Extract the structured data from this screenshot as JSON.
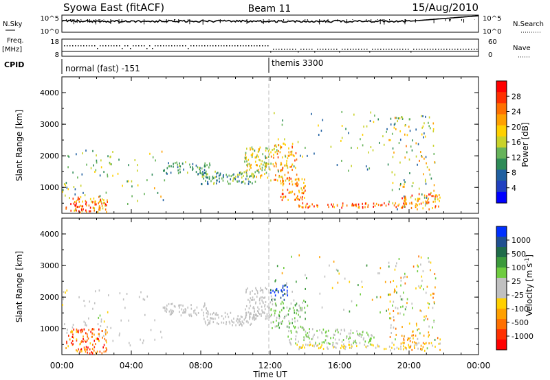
{
  "header": {
    "station": "Syowa East (fitACF)",
    "beam": "Beam 11",
    "date": "15/Aug/2010"
  },
  "left_labels": {
    "nsky": "N.Sky",
    "freq_1": "Freq.",
    "freq_2": "[MHz]",
    "cpid": "CPID",
    "nsky_ticks": [
      "10^5",
      "10^0"
    ],
    "freq_ticks": [
      "18",
      "8"
    ]
  },
  "right_labels": {
    "nsearch": "N.Search",
    "nave": "Nave",
    "nsearch_ticks": [
      "10^5",
      "10^0"
    ],
    "nave_ticks": [
      "60",
      "0"
    ]
  },
  "cpid_modes": [
    {
      "label": "normal (fast) -151",
      "start": "00:00"
    },
    {
      "label": "themis 3300",
      "start": "12:00"
    }
  ],
  "x_axis": {
    "label": "Time UT",
    "ticks": [
      "00:00",
      "04:00",
      "08:00",
      "12:00",
      "16:00",
      "20:00",
      "00:00"
    ]
  },
  "power_colorbar": {
    "label": "Power [dB]",
    "ticks": [
      "28",
      "24",
      "20",
      "16",
      "12",
      "8",
      "4"
    ],
    "colors": [
      "#0000ff",
      "#2040c0",
      "#1f5fa0",
      "#2e8b57",
      "#66b35a",
      "#c8d22a",
      "#ffd000",
      "#ffa000",
      "#ff7000",
      "#ff3000",
      "#ff0000"
    ]
  },
  "velocity_colorbar": {
    "label": "Velocity [m s",
    "label_sup": "-1",
    "label_end": "]",
    "ticks": [
      "1000",
      "500",
      "100",
      "25",
      "-25",
      "-100",
      "-500",
      "-1000"
    ],
    "colors": [
      "#0030ff",
      "#205090",
      "#1f6b4a",
      "#3c9a3c",
      "#6fcc40",
      "#c0c0c0",
      "#c0c0c0",
      "#ffd000",
      "#ffa000",
      "#ff7000",
      "#ff3000",
      "#ff0000"
    ]
  },
  "chart_data": [
    {
      "type": "heatmap",
      "name": "power",
      "xlabel": "Time UT",
      "ylabel": "Slant Range [km]",
      "xlim": [
        0,
        24
      ],
      "ylim": [
        180,
        4500
      ],
      "yticks": [
        1000,
        2000,
        3000,
        4000
      ],
      "ytick_labels": [
        "1000",
        "2000",
        "3000",
        "4000"
      ],
      "zlabel": "Power [dB]",
      "zlim": [
        0,
        30
      ],
      "scatter_regions": [
        {
          "t": [
            0.2,
            2.6
          ],
          "r": [
            200,
            700
          ],
          "z": [
            14,
            30
          ],
          "density": 0.9
        },
        {
          "t": [
            0.0,
            2.8
          ],
          "r": [
            700,
            2300
          ],
          "z": [
            6,
            18
          ],
          "density": 0.12
        },
        {
          "t": [
            2.8,
            6.0
          ],
          "r": [
            300,
            2200
          ],
          "z": [
            8,
            20
          ],
          "density": 0.06
        },
        {
          "t": [
            5.8,
            8.5
          ],
          "r": [
            1400,
            1800
          ],
          "z": [
            6,
            14
          ],
          "density": 0.7
        },
        {
          "t": [
            8.0,
            11.2
          ],
          "r": [
            1100,
            1500
          ],
          "z": [
            6,
            16
          ],
          "density": 0.85
        },
        {
          "t": [
            10.5,
            12.0
          ],
          "r": [
            1300,
            2300
          ],
          "z": [
            10,
            22
          ],
          "density": 0.8
        },
        {
          "t": [
            12.0,
            13.5
          ],
          "r": [
            1200,
            2400
          ],
          "z": [
            14,
            26
          ],
          "density": 0.6
        },
        {
          "t": [
            12.5,
            14.0
          ],
          "r": [
            600,
            1300
          ],
          "z": [
            16,
            28
          ],
          "density": 0.8
        },
        {
          "t": [
            13.5,
            20.5
          ],
          "r": [
            350,
            500
          ],
          "z": [
            18,
            30
          ],
          "density": 0.85
        },
        {
          "t": [
            12.0,
            19.5
          ],
          "r": [
            1500,
            3400
          ],
          "z": [
            6,
            18
          ],
          "density": 0.05
        },
        {
          "t": [
            18.8,
            21.5
          ],
          "r": [
            300,
            3300
          ],
          "z": [
            6,
            22
          ],
          "density": 0.18
        },
        {
          "t": [
            19.5,
            21.8
          ],
          "r": [
            300,
            800
          ],
          "z": [
            16,
            28
          ],
          "density": 0.5
        }
      ]
    },
    {
      "type": "heatmap",
      "name": "velocity",
      "xlabel": "Time UT",
      "ylabel": "Slant Range [km]",
      "xlim": [
        0,
        24
      ],
      "ylim": [
        180,
        4500
      ],
      "yticks": [
        1000,
        2000,
        3000,
        4000
      ],
      "ytick_labels": [
        "1000",
        "2000",
        "3000",
        "4000"
      ],
      "zlabel": "Velocity [m s-1]",
      "zlim": [
        -1000,
        1000
      ],
      "scatter_regions": [
        {
          "t": [
            0.2,
            2.6
          ],
          "r": [
            200,
            1000
          ],
          "z": [
            -1000,
            -200
          ],
          "density": 0.7
        },
        {
          "t": [
            0.0,
            2.8
          ],
          "r": [
            700,
            2300
          ],
          "z": [
            -200,
            200
          ],
          "density": 0.1
        },
        {
          "t": [
            2.8,
            6.0
          ],
          "r": [
            300,
            2200
          ],
          "z": [
            -100,
            100
          ],
          "density": 0.05
        },
        {
          "t": [
            5.8,
            8.5
          ],
          "r": [
            1400,
            1800
          ],
          "z": [
            -20,
            20
          ],
          "density": 0.7
        },
        {
          "t": [
            8.0,
            11.2
          ],
          "r": [
            1100,
            1500
          ],
          "z": [
            -20,
            20
          ],
          "density": 0.85
        },
        {
          "t": [
            10.5,
            12.0
          ],
          "r": [
            1300,
            2300
          ],
          "z": [
            -20,
            20
          ],
          "density": 0.8
        },
        {
          "t": [
            12.0,
            13.0
          ],
          "r": [
            1900,
            2400
          ],
          "z": [
            500,
            1000
          ],
          "density": 0.7
        },
        {
          "t": [
            12.0,
            14.0
          ],
          "r": [
            1000,
            1900
          ],
          "z": [
            60,
            400
          ],
          "density": 0.6
        },
        {
          "t": [
            13.0,
            18.0
          ],
          "r": [
            500,
            1000
          ],
          "z": [
            30,
            300
          ],
          "density": 0.6
        },
        {
          "t": [
            13.5,
            20.5
          ],
          "r": [
            350,
            500
          ],
          "z": [
            -300,
            -60
          ],
          "density": 0.85
        },
        {
          "t": [
            12.0,
            19.5
          ],
          "r": [
            1500,
            3400
          ],
          "z": [
            -500,
            500
          ],
          "density": 0.05
        },
        {
          "t": [
            18.8,
            21.5
          ],
          "r": [
            300,
            3300
          ],
          "z": [
            -600,
            400
          ],
          "density": 0.18
        },
        {
          "t": [
            19.5,
            21.8
          ],
          "r": [
            300,
            800
          ],
          "z": [
            -600,
            -100
          ],
          "density": 0.5
        }
      ]
    }
  ]
}
